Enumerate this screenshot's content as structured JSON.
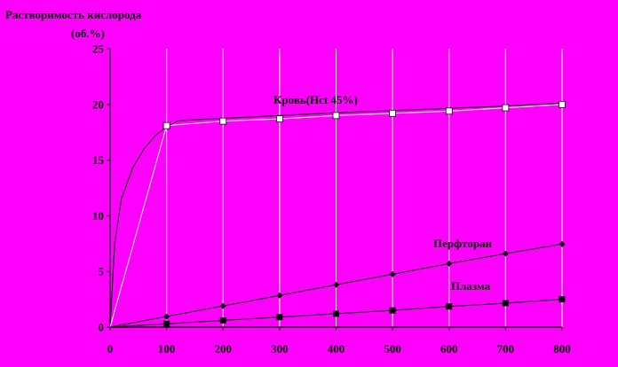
{
  "colors": {
    "background": "#FF00FF",
    "axis": "#000000",
    "gridline": "#FFFFFF",
    "marker_open": "#FFFFFF",
    "marker_filled": "#000000"
  },
  "chart_data": {
    "type": "line",
    "title": "",
    "ylabel_lines": [
      "Растворимость кислорода",
      "(об.%)"
    ],
    "xlabel": "",
    "xlim": [
      0,
      800
    ],
    "ylim": [
      0,
      25
    ],
    "xticks": [
      "0",
      "100",
      "200",
      "300",
      "400",
      "500",
      "600",
      "700",
      "800"
    ],
    "yticks": [
      "0",
      "5",
      "10",
      "15",
      "20",
      "25"
    ],
    "grid": "vertical",
    "legend": "none",
    "series": [
      {
        "name": "Кровь(Hct 45%)",
        "marker": "open-square",
        "x": [
          0,
          100,
          200,
          300,
          400,
          500,
          600,
          700,
          800
        ],
        "y": [
          0,
          18.1,
          18.5,
          18.7,
          19.0,
          19.2,
          19.4,
          19.7,
          20.0
        ],
        "fit_curve": {
          "x": [
            0,
            8,
            20,
            40,
            60,
            80,
            100,
            120,
            140,
            200,
            300,
            400,
            500,
            600,
            700,
            800
          ],
          "y": [
            0,
            7.5,
            11.5,
            14.3,
            16.0,
            17.2,
            18.0,
            18.5,
            18.6,
            18.75,
            19.0,
            19.25,
            19.45,
            19.65,
            19.85,
            20.1
          ]
        }
      },
      {
        "name": "Перфторан",
        "marker": "diamond",
        "x": [
          0,
          100,
          200,
          300,
          400,
          500,
          600,
          700,
          800
        ],
        "y": [
          0,
          0.95,
          1.9,
          2.85,
          3.8,
          4.75,
          5.7,
          6.6,
          7.45
        ]
      },
      {
        "name": "Плазма",
        "marker": "filled-square",
        "x": [
          0,
          100,
          200,
          300,
          400,
          500,
          600,
          700,
          800
        ],
        "y": [
          0,
          0.3,
          0.6,
          0.9,
          1.2,
          1.5,
          1.85,
          2.15,
          2.5
        ]
      }
    ]
  }
}
